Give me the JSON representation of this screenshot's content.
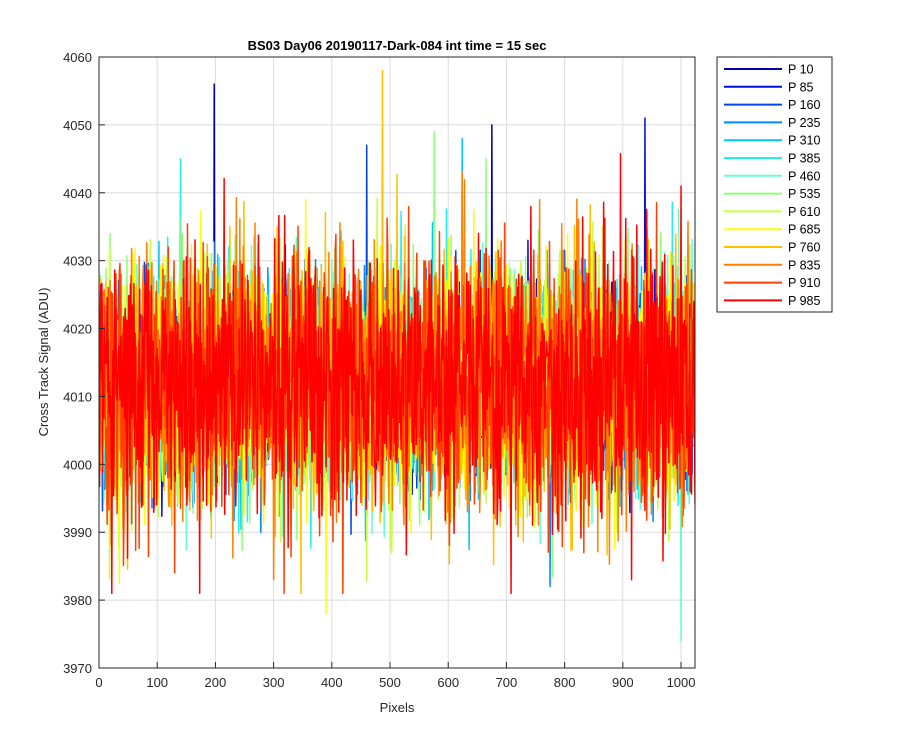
{
  "chart_data": {
    "type": "line",
    "title": "BS03 Day06 20190117-Dark-084 int time = 15 sec",
    "xlabel": "Pixels",
    "ylabel": "Cross Track Signal (ADU)",
    "xlim": [
      0,
      1024
    ],
    "ylim": [
      3970,
      4060
    ],
    "xticks": [
      0,
      100,
      200,
      300,
      400,
      500,
      600,
      700,
      800,
      900,
      1000
    ],
    "yticks": [
      3970,
      3980,
      3990,
      4000,
      4010,
      4020,
      4030,
      4040,
      4050,
      4060
    ],
    "grid": true,
    "legend_position": "outside-top-right",
    "signal_mean": 4012,
    "signal_spread": 8,
    "series": [
      {
        "name": "P 10",
        "color": "#0000a8",
        "peaks": [
          [
            198,
            4056
          ],
          [
            675,
            4050
          ]
        ]
      },
      {
        "name": "P 85",
        "color": "#0010d8",
        "peaks": [
          [
            938,
            4051
          ]
        ]
      },
      {
        "name": "P 160",
        "color": "#0044f0",
        "peaks": [
          [
            460,
            4047
          ]
        ]
      },
      {
        "name": "P 235",
        "color": "#0088ff",
        "peaks": [
          [
            775,
            3982
          ]
        ]
      },
      {
        "name": "P 310",
        "color": "#00c4ff",
        "peaks": [
          [
            624,
            4048
          ]
        ]
      },
      {
        "name": "P 385",
        "color": "#22f0f0",
        "peaks": [
          [
            140,
            4045
          ]
        ]
      },
      {
        "name": "P 460",
        "color": "#66ffcc",
        "peaks": [
          [
            1000,
            3974
          ]
        ]
      },
      {
        "name": "P 535",
        "color": "#90ff78",
        "peaks": [
          [
            665,
            4045
          ]
        ]
      },
      {
        "name": "P 610",
        "color": "#c8ff40",
        "peaks": [
          [
            18,
            3983
          ]
        ]
      },
      {
        "name": "P 685",
        "color": "#ffff00",
        "peaks": [
          [
            390,
            3978
          ]
        ]
      },
      {
        "name": "P 760",
        "color": "#ffc000",
        "peaks": [
          [
            487,
            4058
          ]
        ]
      },
      {
        "name": "P 835",
        "color": "#ff8000",
        "peaks": [
          [
            300,
            3983
          ],
          [
            624,
            4043
          ]
        ]
      },
      {
        "name": "P 910",
        "color": "#ff4000",
        "peaks": [
          [
            130,
            3984
          ]
        ]
      },
      {
        "name": "P 985",
        "color": "#ff0000",
        "peaks": [
          [
            915,
            3983
          ],
          [
            1000,
            4041
          ]
        ]
      }
    ]
  }
}
